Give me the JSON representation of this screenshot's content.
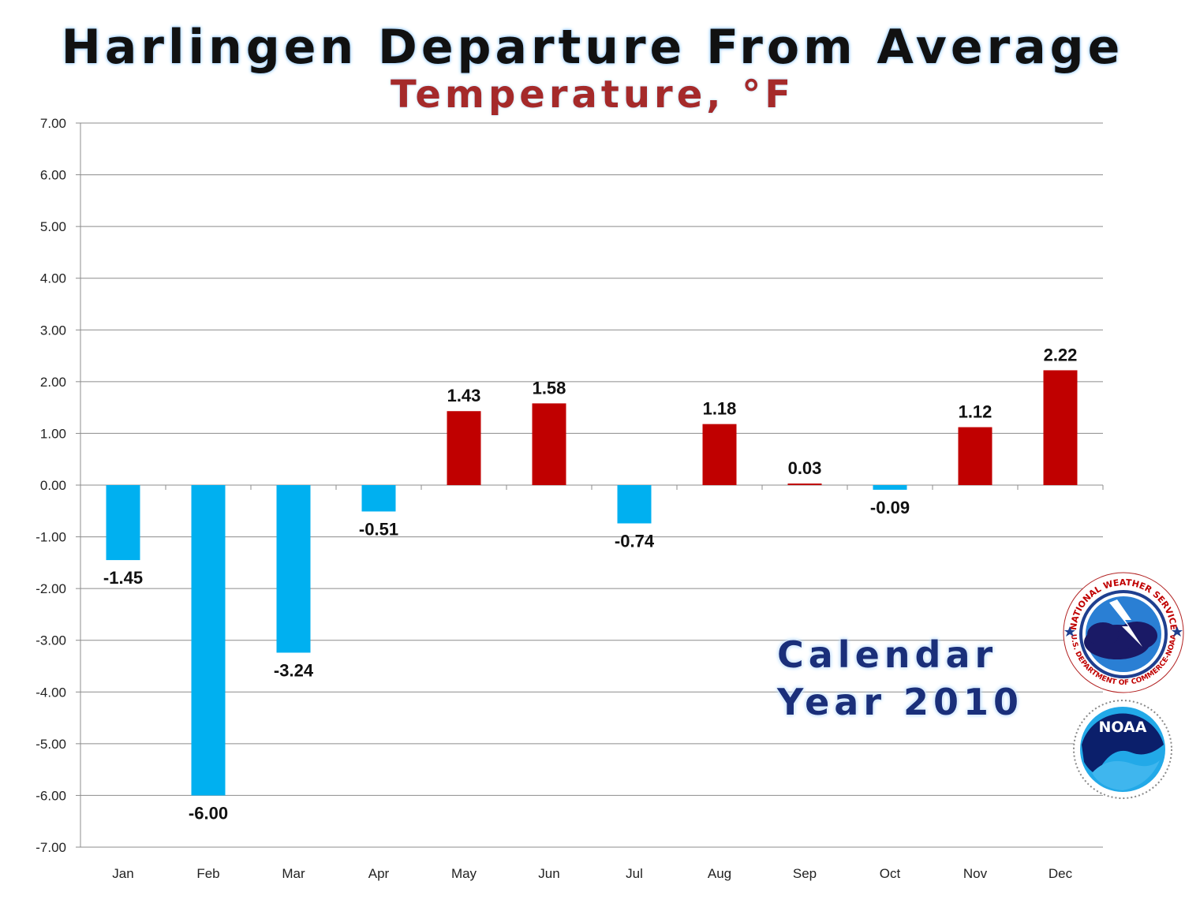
{
  "chart_data": {
    "type": "bar",
    "title": "Harlingen Departure From Average",
    "subtitle": "Temperature, °F",
    "annotation_lines": [
      "Calendar",
      "Year 2010"
    ],
    "categories": [
      "Jan",
      "Feb",
      "Mar",
      "Apr",
      "May",
      "Jun",
      "Jul",
      "Aug",
      "Sep",
      "Oct",
      "Nov",
      "Dec"
    ],
    "values": [
      -1.45,
      -6.0,
      -3.24,
      -0.51,
      1.43,
      1.58,
      -0.74,
      1.18,
      0.03,
      -0.09,
      1.12,
      2.22
    ],
    "data_labels": [
      "-1.45",
      "-6.00",
      "-3.24",
      "-0.51",
      "1.43",
      "1.58",
      "-0.74",
      "1.18",
      "0.03",
      "-0.09",
      "1.12",
      "2.22"
    ],
    "ylim": [
      -7,
      7
    ],
    "y_ticks": [
      "7.00",
      "6.00",
      "5.00",
      "4.00",
      "3.00",
      "2.00",
      "1.00",
      "0.00",
      "-1.00",
      "-2.00",
      "-3.00",
      "-4.00",
      "-5.00",
      "-6.00",
      "-7.00"
    ],
    "grid": true,
    "colors": {
      "positive": "#c00000",
      "negative": "#00b0f0",
      "grid": "#8c8c8c"
    }
  },
  "logos": {
    "nws": {
      "ring_text": "NATIONAL WEATHER SERVICE",
      "bottom_text": "U.S. DEPARTMENT OF COMMERCE-NOAA",
      "icon": "nws-lightning-cloud-icon"
    },
    "noaa": {
      "label": "NOAA",
      "icon": "noaa-bird-icon"
    }
  }
}
